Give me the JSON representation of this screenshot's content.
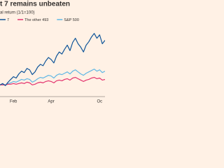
{
  "chart_data": {
    "type": "line",
    "title": "t 7 remains unbeaten",
    "subtitle": "al return (1/1=100)",
    "categories": [
      null,
      null,
      null,
      null,
      null,
      "Feb",
      null,
      null,
      null,
      null,
      null,
      null,
      null,
      null,
      null,
      null,
      null,
      null,
      null,
      "Apr",
      null,
      null,
      null,
      null,
      null,
      null,
      null,
      null,
      null,
      null,
      null,
      null,
      null,
      null,
      null,
      null,
      null,
      "Oc",
      null,
      null
    ],
    "series": [
      {
        "name": "7",
        "color": "#0f5499",
        "values": [
          100,
          102,
          99,
          104,
          108,
          112,
          110,
          116,
          120,
          118,
          124,
          122,
          115,
          119,
          126,
          130,
          128,
          135,
          140,
          137,
          132,
          142,
          148,
          145,
          152,
          158,
          150,
          162,
          168,
          160,
          155,
          148,
          158,
          163,
          170,
          175,
          168,
          173,
          160,
          165
        ]
      },
      {
        "name": "The other 493",
        "color": "#e3336e",
        "values": [
          100,
          100,
          100,
          101,
          101,
          102,
          101,
          102,
          103,
          102,
          104,
          103,
          100,
          101,
          103,
          104,
          103,
          105,
          106,
          105,
          103,
          106,
          107,
          106,
          108,
          109,
          107,
          110,
          111,
          109,
          107,
          105,
          107,
          108,
          110,
          111,
          109,
          110,
          107,
          108
        ]
      },
      {
        "name": "S&P 500",
        "color": "#5fb7e5",
        "values": [
          100,
          101,
          100,
          102,
          103,
          105,
          104,
          106,
          108,
          107,
          109,
          108,
          104,
          106,
          109,
          111,
          110,
          112,
          114,
          113,
          110,
          114,
          116,
          115,
          117,
          119,
          116,
          120,
          122,
          119,
          116,
          114,
          117,
          119,
          121,
          123,
          120,
          122,
          118,
          120
        ]
      }
    ],
    "ylim": [
      85,
      185
    ]
  }
}
